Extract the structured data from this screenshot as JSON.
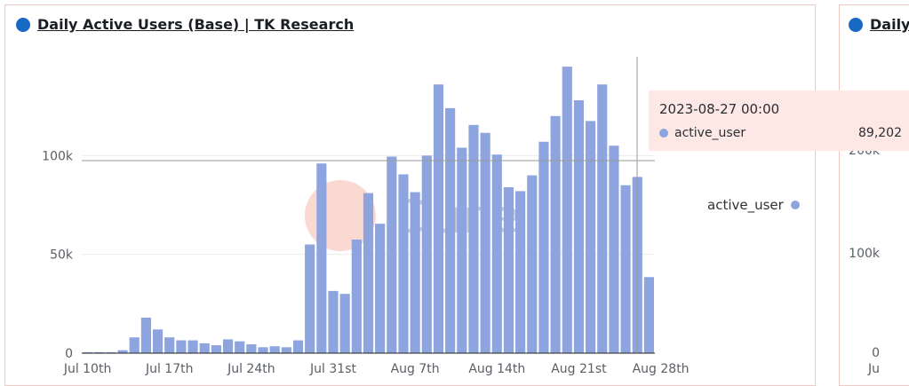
{
  "panels": [
    {
      "title": "Daily Active Users (Base) | TK Research"
    },
    {
      "title": "Daily Active Users (Base) | TK Research",
      "visible_title": "Daily I"
    }
  ],
  "watermark": "Dune",
  "legend": {
    "label": "active_user"
  },
  "tooltip": {
    "date": "2023-08-27 00:00",
    "series": "active_user",
    "value": "89,202"
  },
  "second_panel_ticks": [
    "200k",
    "100k",
    "0",
    "Ju"
  ],
  "colors": {
    "bar": "#8ea4df",
    "title_dot": "#1769c4",
    "tooltip_bg": "#fde8e6"
  },
  "chart_data": {
    "type": "bar",
    "title": "Daily Active Users (Base) | TK Research",
    "series": [
      {
        "name": "active_user",
        "values": [
          500,
          500,
          500,
          1500,
          8000,
          18000,
          12000,
          8000,
          6500,
          6500,
          5000,
          4000,
          7000,
          6000,
          4500,
          3000,
          3500,
          3000,
          6500,
          55000,
          96000,
          31500,
          30000,
          57500,
          81000,
          65500,
          99500,
          90500,
          81500,
          100000,
          136000,
          124000,
          104000,
          115500,
          111500,
          100500,
          84000,
          82000,
          90000,
          107000,
          120000,
          145000,
          128000,
          117500,
          136000,
          105000,
          85000,
          89202,
          38500
        ]
      }
    ],
    "categories": [
      "2023-07-10",
      "2023-07-11",
      "2023-07-12",
      "2023-07-13",
      "2023-07-14",
      "2023-07-15",
      "2023-07-16",
      "2023-07-17",
      "2023-07-18",
      "2023-07-19",
      "2023-07-20",
      "2023-07-21",
      "2023-07-22",
      "2023-07-23",
      "2023-07-24",
      "2023-07-25",
      "2023-07-26",
      "2023-07-27",
      "2023-07-28",
      "2023-07-29",
      "2023-07-30",
      "2023-07-31",
      "2023-08-01",
      "2023-08-02",
      "2023-08-03",
      "2023-08-04",
      "2023-08-05",
      "2023-08-06",
      "2023-08-07",
      "2023-08-08",
      "2023-08-09",
      "2023-08-10",
      "2023-08-11",
      "2023-08-12",
      "2023-08-13",
      "2023-08-14",
      "2023-08-15",
      "2023-08-16",
      "2023-08-17",
      "2023-08-18",
      "2023-08-19",
      "2023-08-20",
      "2023-08-21",
      "2023-08-22",
      "2023-08-23",
      "2023-08-24",
      "2023-08-25",
      "2023-08-27",
      "2023-08-28"
    ],
    "x_tick_labels": [
      "Jul 10th",
      "Jul 17th",
      "Jul 24th",
      "Jul 31st",
      "Aug 7th",
      "Aug 14th",
      "Aug 21st",
      "Aug 28th"
    ],
    "y_tick_labels": [
      "0",
      "50k",
      "100k"
    ],
    "ylim": [
      0,
      150000
    ],
    "grid": true,
    "legend_position": "right"
  }
}
